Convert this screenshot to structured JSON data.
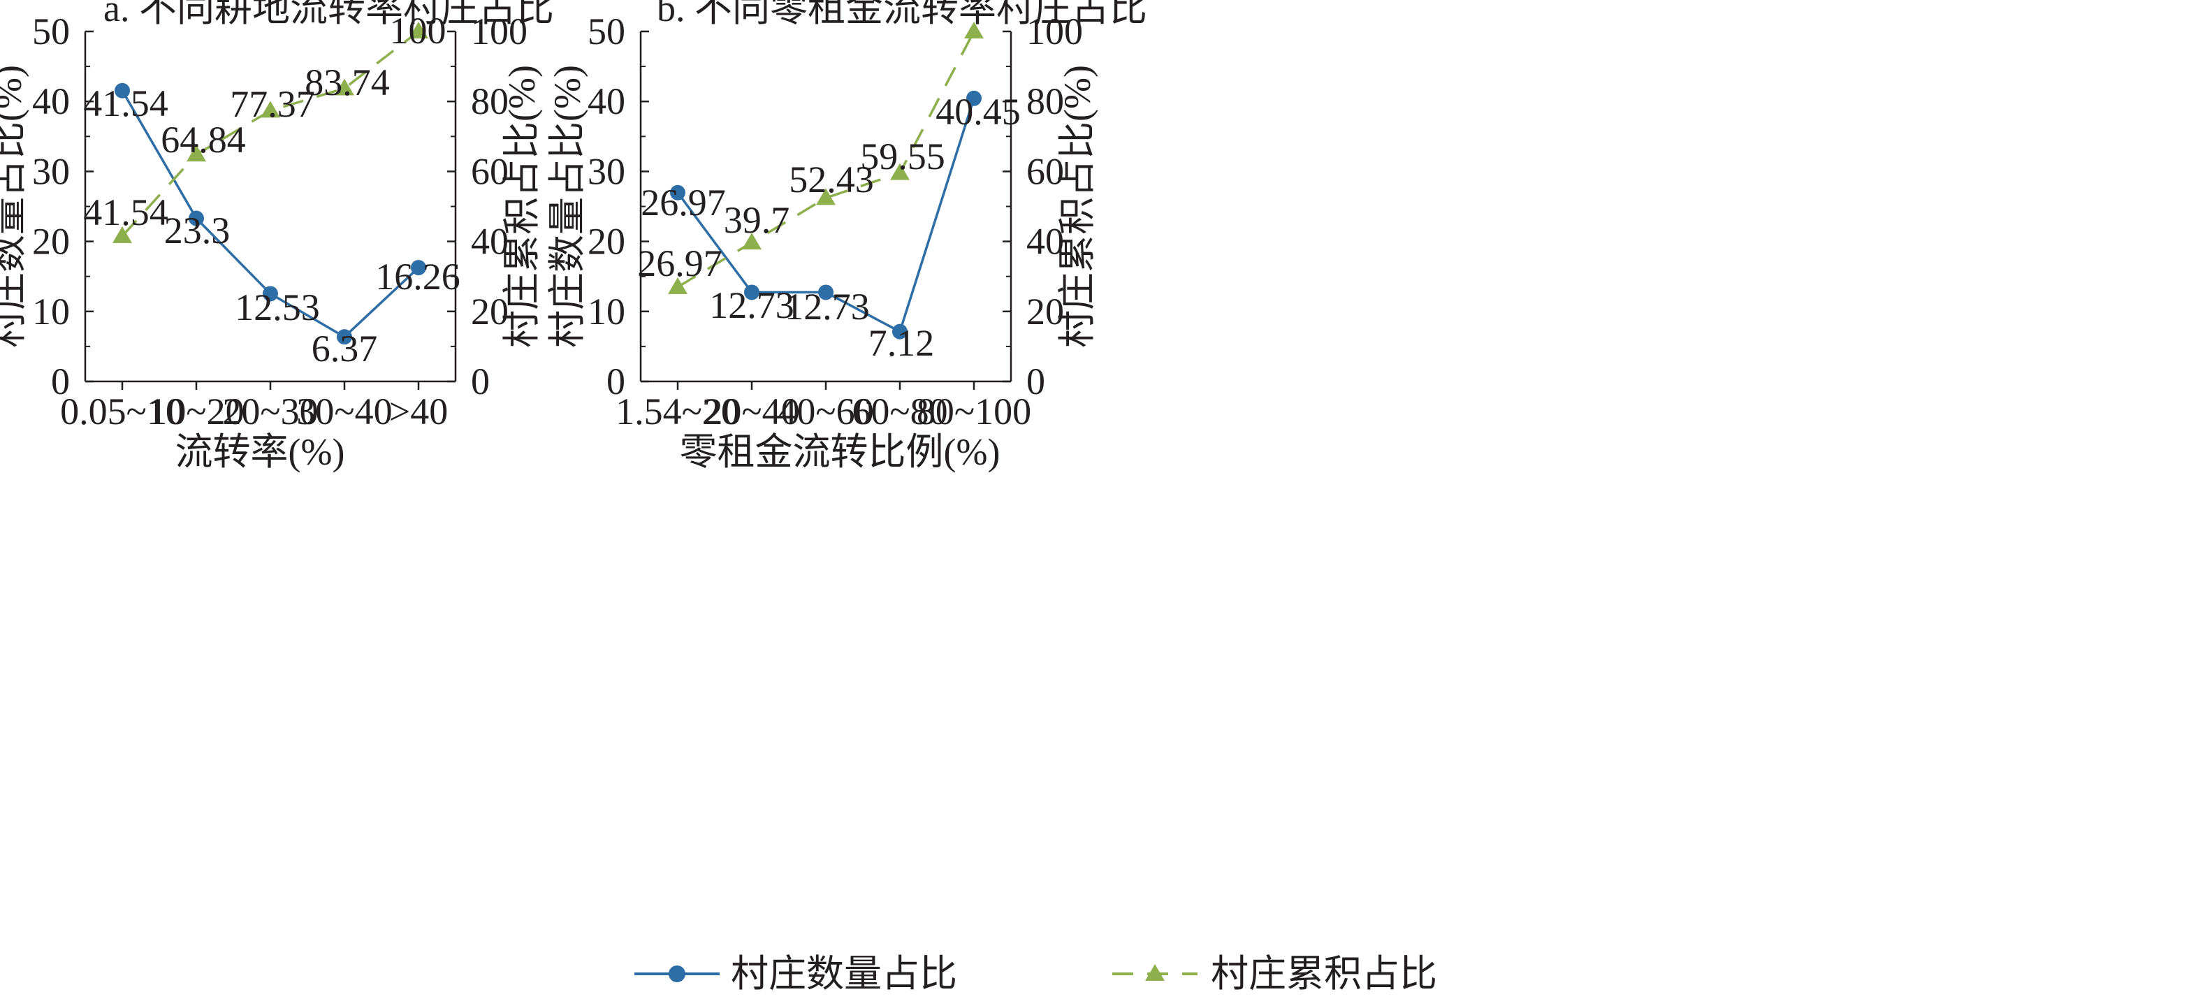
{
  "colors": {
    "count": "#2e6ea6",
    "cumulative": "#8db04d",
    "axis": "#231f20"
  },
  "legend": {
    "count_label": "村庄数量占比",
    "cumulative_label": "村庄累积占比"
  },
  "chart_data": [
    {
      "type": "line",
      "title": "a. 不同耕地流转率村庄占比",
      "xlabel": "流转率(%)",
      "ylabel": "村庄数量占比(%)",
      "y2label": "村庄累积占比(%)",
      "categories": [
        "0.05~10",
        "10~20",
        "20~30",
        "30~40",
        ">40"
      ],
      "ylim": [
        0,
        50
      ],
      "yticks": [
        0,
        10,
        20,
        30,
        40,
        50
      ],
      "y2lim": [
        0,
        100
      ],
      "y2ticks": [
        0,
        20,
        40,
        60,
        80,
        100
      ],
      "series": [
        {
          "name": "村庄数量占比",
          "axis": "left",
          "values": [
            41.54,
            23.3,
            12.53,
            6.37,
            16.26
          ],
          "labels": [
            "41.54",
            "23.3",
            "12.53",
            "6.37",
            "16.26"
          ]
        },
        {
          "name": "村庄累积占比",
          "axis": "right",
          "values": [
            41.54,
            64.84,
            77.37,
            83.74,
            100
          ],
          "labels": [
            "41.54",
            "64.84",
            "77.37",
            "83.74",
            "100"
          ]
        }
      ]
    },
    {
      "type": "line",
      "title": "b. 不同零租金流转率村庄占比",
      "xlabel": "零租金流转比例(%)",
      "ylabel": "村庄数量占比(%)",
      "y2label": "村庄累积占比(%)",
      "categories": [
        "1.54~20",
        "20~40",
        "40~60",
        "60~80",
        "80~100"
      ],
      "ylim": [
        0,
        50
      ],
      "yticks": [
        0,
        10,
        20,
        30,
        40,
        50
      ],
      "y2lim": [
        0,
        100
      ],
      "y2ticks": [
        0,
        20,
        40,
        60,
        80,
        100
      ],
      "series": [
        {
          "name": "村庄数量占比",
          "axis": "left",
          "values": [
            26.97,
            12.73,
            12.73,
            7.12,
            40.45
          ],
          "labels": [
            "26.97",
            "12.73",
            "12.73",
            "7.12",
            "40.45"
          ]
        },
        {
          "name": "村庄累积占比",
          "axis": "right",
          "values": [
            26.97,
            39.7,
            52.43,
            59.55,
            100
          ],
          "labels": [
            "26.97",
            "39.7",
            "52.43",
            "59.55",
            ""
          ]
        }
      ]
    }
  ]
}
